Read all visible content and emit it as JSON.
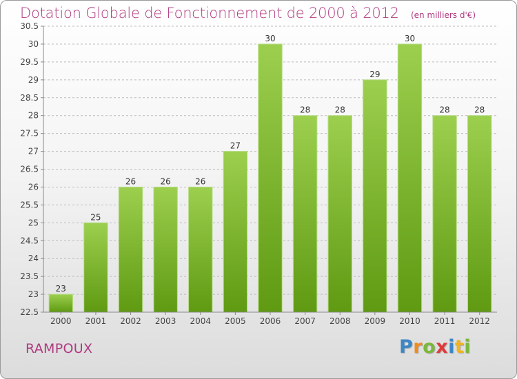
{
  "header": {
    "title": "Dotation Globale de Fonctionnement de 2000 à 2012",
    "subtitle": "(en milliers d'€)"
  },
  "footer": {
    "commune": "RAMPOUX",
    "logo_text": "Proxiti"
  },
  "colors": {
    "title": "#b03a80",
    "bar_top": "#9ccf4e",
    "bar_bottom": "#5f9a12",
    "axis": "#888888",
    "grid": "#bbbbbb"
  },
  "chart_data": {
    "type": "bar",
    "title": "Dotation Globale de Fonctionnement de 2000 à 2012",
    "subtitle": "(en milliers d'€)",
    "xlabel": "",
    "ylabel": "",
    "categories": [
      "2000",
      "2001",
      "2002",
      "2003",
      "2004",
      "2005",
      "2006",
      "2007",
      "2008",
      "2009",
      "2010",
      "2011",
      "2012"
    ],
    "values": [
      23,
      25,
      26,
      26,
      26,
      27,
      30,
      28,
      28,
      29,
      30,
      28,
      28
    ],
    "ylim": [
      22.5,
      30.5
    ],
    "yticks": [
      "22.5",
      "23",
      "23.5",
      "24",
      "24.5",
      "25",
      "25.5",
      "26",
      "26.5",
      "27",
      "27.5",
      "28",
      "28.5",
      "29",
      "29.5",
      "30",
      "30.5"
    ],
    "grid": "horizontal dashed",
    "legend": "none",
    "data_labels": true
  }
}
